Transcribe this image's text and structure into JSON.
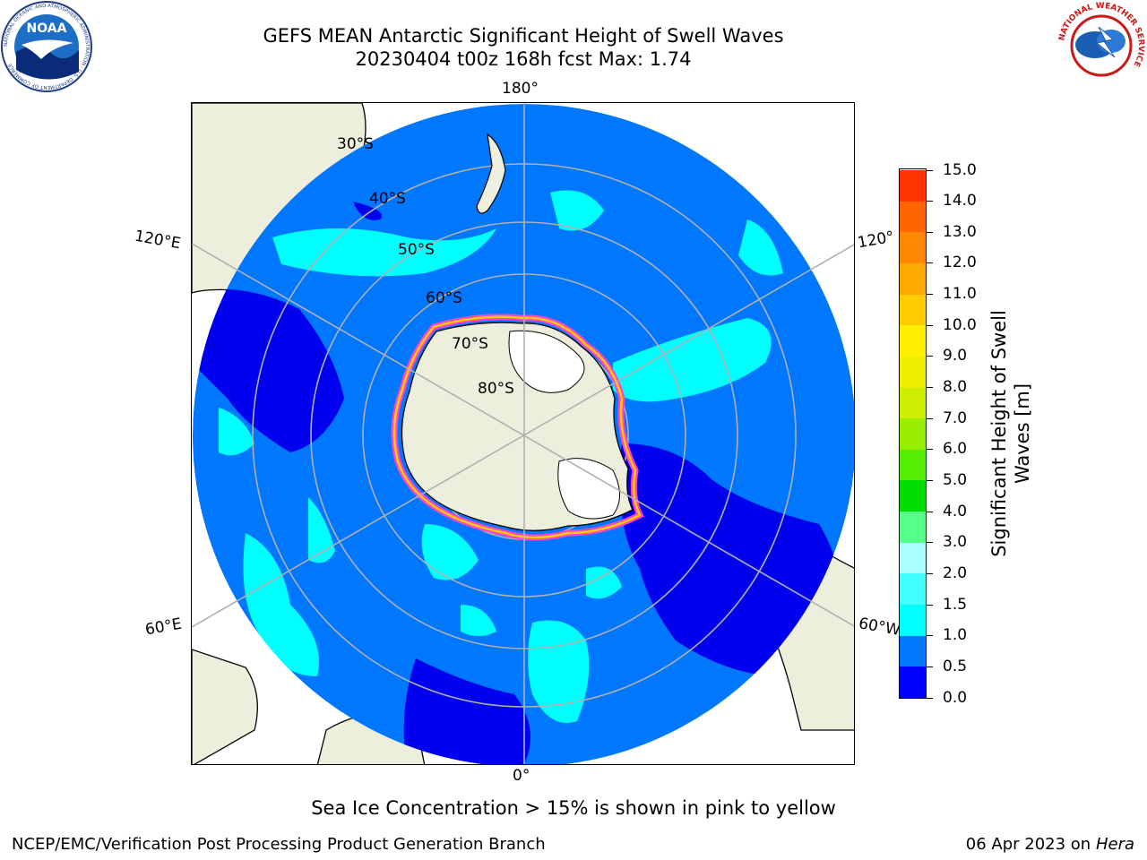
{
  "header": {
    "title_line1": "GEFS MEAN Antarctic Significant Height of Swell Waves",
    "title_line2": "20230404 t00z 168h fcst   Max: 1.74"
  },
  "logos": {
    "left": "NOAA",
    "left_ring_text": "NATIONAL OCEANIC AND ATMOSPHERIC ADMINISTRATION · U.S. DEPARTMENT OF COMMERCE",
    "right_ring_text": "NATIONAL WEATHER SERVICE"
  },
  "map": {
    "projection": "south-polar-stereographic",
    "longitude_labels": [
      "180°",
      "120°E",
      "120°",
      "60°E",
      "60°W",
      "0°"
    ],
    "latitude_labels": [
      "30°S",
      "40°S",
      "50°S",
      "60°S",
      "70°S",
      "80°S"
    ],
    "colors": {
      "land": "#eeeedd",
      "ice_edge_pink": "#ff44cc",
      "ice_edge_yellow": "#ffcc00",
      "grid": "#b0b0b0"
    }
  },
  "colorbar": {
    "title_line1": "Significant Height of Swell",
    "title_line2": "Waves [m]",
    "tick_labels": [
      "0.0",
      "0.5",
      "1.0",
      "1.5",
      "2.0",
      "3.0",
      "4.0",
      "5.0",
      "6.0",
      "7.0",
      "8.0",
      "9.0",
      "10.0",
      "11.0",
      "12.0",
      "13.0",
      "14.0",
      "15.0"
    ],
    "colors": [
      "#0000ff",
      "#0077ff",
      "#00ffff",
      "#44ffff",
      "#aaffff",
      "#55ff88",
      "#00dd00",
      "#55ee00",
      "#99ee00",
      "#ccee00",
      "#eeee00",
      "#ffee00",
      "#ffcc00",
      "#ffaa00",
      "#ff8800",
      "#ff6600",
      "#ff3300"
    ]
  },
  "caption": "Sea Ice Concentration > 15% is shown in pink to yellow",
  "footer": {
    "left": "NCEP/EMC/Verification Post Processing Product Generation Branch",
    "right_date": "06 Apr 2023 on ",
    "right_host": "Hera"
  }
}
